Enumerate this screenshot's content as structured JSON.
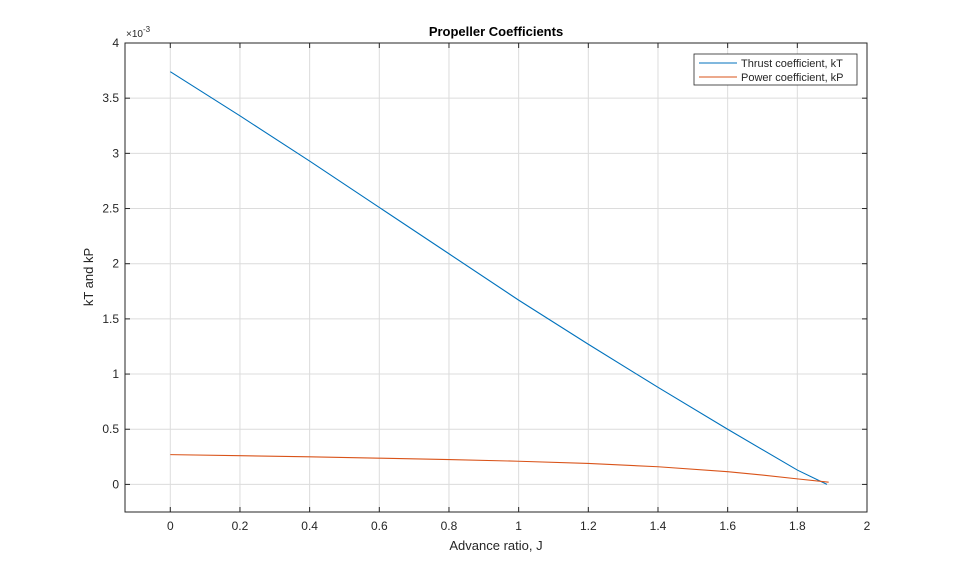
{
  "chart_data": {
    "type": "line",
    "title": "Propeller Coefficients",
    "xlabel": "Advance ratio, J",
    "ylabel": "kT and kP",
    "y_exponent": {
      "base": "×10",
      "power": "-3"
    },
    "xlim": [
      -0.13,
      2.0
    ],
    "ylim": [
      -0.25,
      4.0
    ],
    "y_display_scale": 0.001,
    "x_ticks": [
      0,
      0.2,
      0.4,
      0.6,
      0.8,
      1,
      1.2,
      1.4,
      1.6,
      1.8,
      2
    ],
    "x_tick_labels": [
      "0",
      "0.2",
      "0.4",
      "0.6",
      "0.8",
      "1",
      "1.2",
      "1.4",
      "1.6",
      "1.8",
      "2"
    ],
    "y_ticks": [
      0,
      0.5,
      1,
      1.5,
      2,
      2.5,
      3,
      3.5,
      4
    ],
    "y_tick_labels": [
      "0",
      "0.5",
      "1",
      "1.5",
      "2",
      "2.5",
      "3",
      "3.5",
      "4"
    ],
    "grid": true,
    "legend_position": "top-right",
    "series": [
      {
        "name": "Thrust coefficient, kT",
        "color": "#0072BD",
        "x": [
          0,
          0.2,
          0.4,
          0.6,
          0.8,
          1.0,
          1.2,
          1.4,
          1.6,
          1.8,
          1.885
        ],
        "y": [
          0.00374,
          0.00334,
          0.00293,
          0.00251,
          0.00209,
          0.00167,
          0.00127,
          0.00088,
          0.0005,
          0.00013,
          0.0
        ]
      },
      {
        "name": "Power coefficient, kP",
        "color": "#D95319",
        "x": [
          0,
          0.2,
          0.4,
          0.6,
          0.8,
          1.0,
          1.2,
          1.4,
          1.6,
          1.7,
          1.8,
          1.89
        ],
        "y": [
          0.00027,
          0.00026,
          0.00025,
          0.000238,
          0.000225,
          0.00021,
          0.00019,
          0.00016,
          0.000115,
          8.5e-05,
          5e-05,
          2e-05
        ]
      }
    ]
  }
}
